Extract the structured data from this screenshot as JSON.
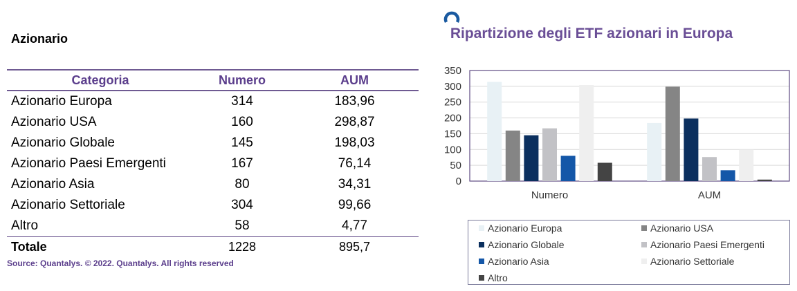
{
  "table": {
    "title": "Azionario",
    "headers": [
      "Categoria",
      "Numero",
      "AUM"
    ],
    "rows": [
      {
        "categoria": "Azionario Europa",
        "numero": "314",
        "aum": "183,96"
      },
      {
        "categoria": "Azionario USA",
        "numero": "160",
        "aum": "298,87"
      },
      {
        "categoria": "Azionario Globale",
        "numero": "145",
        "aum": "198,03"
      },
      {
        "categoria": "Azionario Paesi Emergenti",
        "numero": "167",
        "aum": "76,14"
      },
      {
        "categoria": "Azionario Asia",
        "numero": "80",
        "aum": "34,31"
      },
      {
        "categoria": "Azionario Settoriale",
        "numero": "304",
        "aum": "99,66"
      },
      {
        "categoria": "Altro",
        "numero": "58",
        "aum": "4,77"
      }
    ],
    "total": {
      "label": "Totale",
      "numero": "1228",
      "aum": "895,7"
    },
    "source": "Source: Quantalys. © 2022. Quantalys. All rights reserved"
  },
  "chart_data": {
    "type": "bar",
    "title": "Ripartizione degli ETF azionari in Europa",
    "categories": [
      "Numero",
      "AUM"
    ],
    "ylim": [
      0,
      350
    ],
    "yticks": [
      0,
      50,
      100,
      150,
      200,
      250,
      300,
      350
    ],
    "grid": true,
    "legend_position": "bottom",
    "series": [
      {
        "name": "Azionario Europa",
        "color": "#e8f1f5",
        "values": [
          314,
          183.96
        ]
      },
      {
        "name": "Azionario USA",
        "color": "#858585",
        "values": [
          160,
          298.87
        ]
      },
      {
        "name": "Azionario Globale",
        "color": "#0b2f5e",
        "values": [
          145,
          198.03
        ]
      },
      {
        "name": "Azionario Paesi Emergenti",
        "color": "#c2c2c6",
        "values": [
          167,
          76.14
        ]
      },
      {
        "name": "Azionario Asia",
        "color": "#1457a8",
        "values": [
          80,
          34.31
        ]
      },
      {
        "name": "Azionario Settoriale",
        "color": "#efefef",
        "values": [
          304,
          99.66
        ]
      },
      {
        "name": "Altro",
        "color": "#444444",
        "values": [
          58,
          4.77
        ]
      }
    ]
  },
  "colors": {
    "accent": "#5b3e8c",
    "title": "#6a4e96",
    "logo": "#1a5aa0"
  }
}
